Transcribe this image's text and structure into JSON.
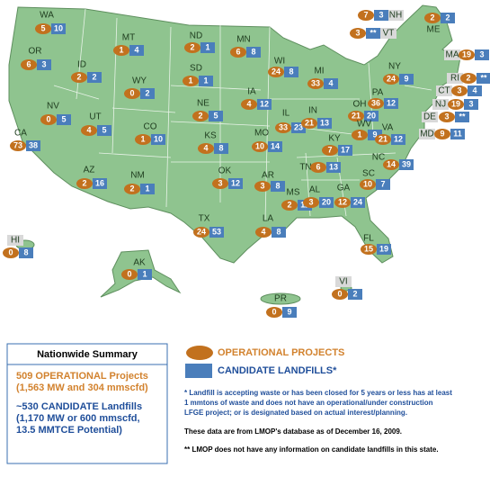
{
  "states": [
    {
      "abbr": "WA",
      "operational": 5,
      "candidate": 10
    },
    {
      "abbr": "OR",
      "operational": 6,
      "candidate": 3
    },
    {
      "abbr": "CA",
      "operational": 73,
      "candidate": 38
    },
    {
      "abbr": "ID",
      "operational": 2,
      "candidate": 2
    },
    {
      "abbr": "NV",
      "operational": 0,
      "candidate": 5
    },
    {
      "abbr": "MT",
      "operational": 1,
      "candidate": 4
    },
    {
      "abbr": "WY",
      "operational": 0,
      "candidate": 2
    },
    {
      "abbr": "UT",
      "operational": 4,
      "candidate": 5
    },
    {
      "abbr": "AZ",
      "operational": 2,
      "candidate": 16
    },
    {
      "abbr": "CO",
      "operational": 1,
      "candidate": 10
    },
    {
      "abbr": "NM",
      "operational": 2,
      "candidate": 1
    },
    {
      "abbr": "ND",
      "operational": 2,
      "candidate": 1
    },
    {
      "abbr": "SD",
      "operational": 1,
      "candidate": 1
    },
    {
      "abbr": "NE",
      "operational": 2,
      "candidate": 5
    },
    {
      "abbr": "KS",
      "operational": 4,
      "candidate": 8
    },
    {
      "abbr": "OK",
      "operational": 3,
      "candidate": 12
    },
    {
      "abbr": "TX",
      "operational": 24,
      "candidate": 53
    },
    {
      "abbr": "MN",
      "operational": 6,
      "candidate": 8
    },
    {
      "abbr": "IA",
      "operational": 4,
      "candidate": 12
    },
    {
      "abbr": "MO",
      "operational": 10,
      "candidate": 14
    },
    {
      "abbr": "AR",
      "operational": 3,
      "candidate": 8
    },
    {
      "abbr": "LA",
      "operational": 4,
      "candidate": 8
    },
    {
      "abbr": "WI",
      "operational": 24,
      "candidate": 8
    },
    {
      "abbr": "IL",
      "operational": 33,
      "candidate": 23
    },
    {
      "abbr": "MS",
      "operational": 2,
      "candidate": 11
    },
    {
      "abbr": "MI",
      "operational": 33,
      "candidate": 4
    },
    {
      "abbr": "IN",
      "operational": 21,
      "candidate": 13
    },
    {
      "abbr": "KY",
      "operational": 7,
      "candidate": 17
    },
    {
      "abbr": "TN",
      "operational": 6,
      "candidate": 13
    },
    {
      "abbr": "AL",
      "operational": 3,
      "candidate": 20
    },
    {
      "abbr": "GA",
      "operational": 12,
      "candidate": 24
    },
    {
      "abbr": "FL",
      "operational": 15,
      "candidate": 19
    },
    {
      "abbr": "OH",
      "operational": 21,
      "candidate": 20
    },
    {
      "abbr": "WV",
      "operational": 1,
      "candidate": 9
    },
    {
      "abbr": "VA",
      "operational": 21,
      "candidate": 12
    },
    {
      "abbr": "NC",
      "operational": 14,
      "candidate": 39
    },
    {
      "abbr": "SC",
      "operational": 10,
      "candidate": 7
    },
    {
      "abbr": "PA",
      "operational": 36,
      "candidate": 12
    },
    {
      "abbr": "NY",
      "operational": 24,
      "candidate": 9
    },
    {
      "abbr": "MA",
      "operational": 19,
      "candidate": 3
    },
    {
      "abbr": "RI",
      "operational": 2,
      "candidate": "**"
    },
    {
      "abbr": "CT",
      "operational": 3,
      "candidate": 4
    },
    {
      "abbr": "NJ",
      "operational": 19,
      "candidate": 3
    },
    {
      "abbr": "DE",
      "operational": 3,
      "candidate": "**"
    },
    {
      "abbr": "MD",
      "operational": 9,
      "candidate": 11
    },
    {
      "abbr": "NH",
      "operational": 7,
      "candidate": 3
    },
    {
      "abbr": "VT",
      "operational": 3,
      "candidate": "**"
    },
    {
      "abbr": "ME",
      "operational": 2,
      "candidate": 2
    },
    {
      "abbr": "HI",
      "operational": 0,
      "candidate": 8
    },
    {
      "abbr": "AK",
      "operational": 0,
      "candidate": 1
    },
    {
      "abbr": "PR",
      "operational": 0,
      "candidate": 9
    },
    {
      "abbr": "VI",
      "operational": 0,
      "candidate": 2
    }
  ],
  "summary": {
    "title": "Nationwide Summary",
    "operational_lines": [
      "509 OPERATIONAL Projects",
      "(1,563 MW and 304 mmscfd)"
    ],
    "candidate_lines": [
      "~530 CANDIDATE Landfills",
      "(1,170 MW or 600 mmscfd,",
      "13.5 MMTCE Potential)"
    ]
  },
  "legend": {
    "operational": "OPERATIONAL PROJECTS",
    "candidate": "CANDIDATE LANDFILLS*"
  },
  "notes": {
    "candidate_note": [
      "* Landfill is accepting waste or has been closed for 5 years or less has at least",
      "1 mmtons of waste and does not have an operational/under construction",
      "LFGE project; or is designated based on actual interest/planning."
    ],
    "source": "These data are from LMOP's database as of December 16, 2009.",
    "no_info": "** LMOP does not have any information on candidate landfills in this state."
  }
}
